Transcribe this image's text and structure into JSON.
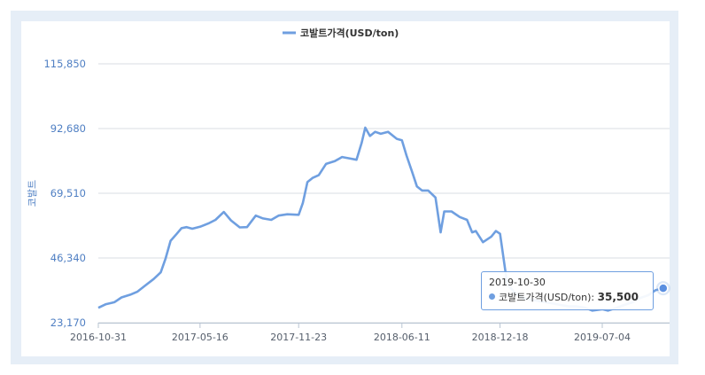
{
  "chart_data": {
    "type": "line",
    "title": "",
    "xlabel": "",
    "ylabel": "코발트",
    "legend": {
      "position": "top-center",
      "entries": [
        "코발트가격(USD/ton)"
      ]
    },
    "grid": "horizontal",
    "ylim": [
      23170,
      115850
    ],
    "y_ticks": [
      "115,850",
      "92,680",
      "69,510",
      "46,340",
      "23,170"
    ],
    "y_tick_values": [
      115850,
      92680,
      69510,
      46340,
      23170
    ],
    "x_ticks": [
      "2016-10-31",
      "2017-05-16",
      "2017-11-23",
      "2018-06-11",
      "2018-12-18",
      "2019-07-04"
    ],
    "series": [
      {
        "name": "코발트가격(USD/ton)",
        "color": "#6f9fe0",
        "x": [
          "2016-10-31",
          "2016-11-15",
          "2016-12-01",
          "2016-12-15",
          "2017-01-01",
          "2017-01-15",
          "2017-02-01",
          "2017-02-15",
          "2017-03-01",
          "2017-03-10",
          "2017-03-20",
          "2017-04-01",
          "2017-04-10",
          "2017-04-20",
          "2017-05-01",
          "2017-05-16",
          "2017-06-01",
          "2017-06-15",
          "2017-07-01",
          "2017-07-15",
          "2017-08-01",
          "2017-08-15",
          "2017-09-01",
          "2017-09-15",
          "2017-10-01",
          "2017-10-15",
          "2017-11-01",
          "2017-11-23",
          "2017-12-01",
          "2017-12-10",
          "2017-12-20",
          "2018-01-01",
          "2018-01-15",
          "2018-02-01",
          "2018-02-15",
          "2018-03-01",
          "2018-03-15",
          "2018-03-25",
          "2018-04-01",
          "2018-04-10",
          "2018-04-20",
          "2018-05-01",
          "2018-05-15",
          "2018-06-01",
          "2018-06-11",
          "2018-06-20",
          "2018-07-01",
          "2018-07-10",
          "2018-07-20",
          "2018-08-01",
          "2018-08-15",
          "2018-08-25",
          "2018-09-01",
          "2018-09-15",
          "2018-10-01",
          "2018-10-15",
          "2018-10-25",
          "2018-11-01",
          "2018-11-15",
          "2018-12-01",
          "2018-12-10",
          "2018-12-18",
          "2019-01-01",
          "2019-01-15",
          "2019-02-01",
          "2019-02-15",
          "2019-03-01",
          "2019-03-15",
          "2019-04-01",
          "2019-04-15",
          "2019-05-01",
          "2019-05-15",
          "2019-06-01",
          "2019-06-15",
          "2019-07-04",
          "2019-07-15",
          "2019-08-01",
          "2019-08-15",
          "2019-09-01",
          "2019-09-15",
          "2019-10-01",
          "2019-10-15",
          "2019-10-30"
        ],
        "values": [
          28500,
          29800,
          30500,
          32200,
          33200,
          34300,
          36800,
          38800,
          41200,
          46000,
          52500,
          55000,
          57000,
          57400,
          56800,
          57500,
          58700,
          60000,
          62800,
          59800,
          57300,
          57400,
          61500,
          60500,
          60000,
          61500,
          62000,
          61800,
          66000,
          73500,
          75000,
          76000,
          80000,
          81000,
          82500,
          82000,
          81500,
          87500,
          93000,
          90000,
          91500,
          90800,
          91500,
          89000,
          88500,
          83000,
          77000,
          72000,
          70500,
          70500,
          68000,
          55500,
          63000,
          63000,
          61000,
          60000,
          55500,
          56000,
          52000,
          54000,
          56000,
          55000,
          37000,
          34000,
          32000,
          31500,
          31000,
          30500,
          30000,
          29500,
          29000,
          29000,
          28500,
          27500,
          28000,
          27500,
          28500,
          29500,
          30500,
          32000,
          33000,
          34800,
          35500
        ]
      }
    ],
    "tooltip": {
      "date": "2019-10-30",
      "series": "코발트가격(USD/ton)",
      "value_label": "35,500",
      "value": 35500
    }
  }
}
